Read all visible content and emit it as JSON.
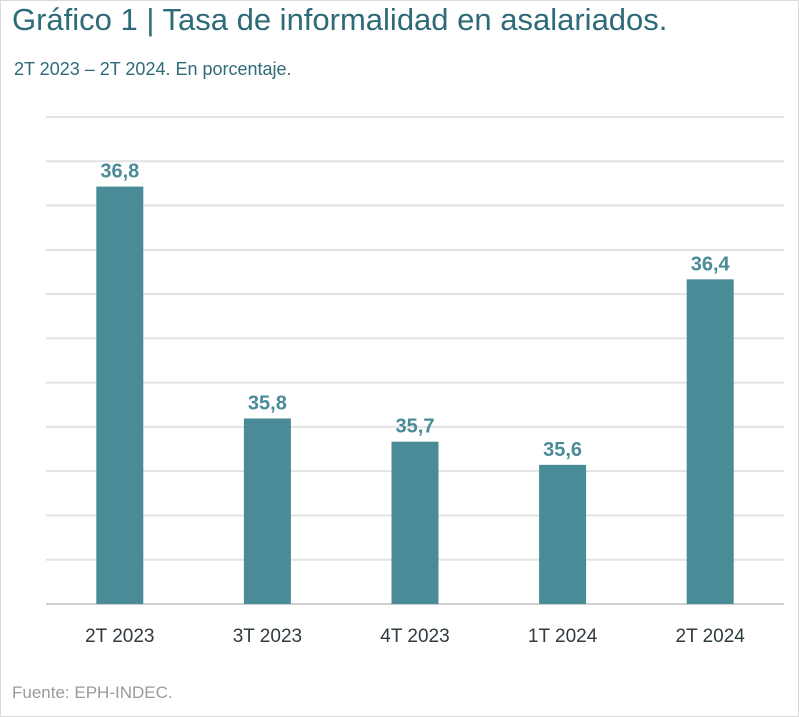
{
  "header": {
    "title": "Gráfico 1 | Tasa de informalidad en asalariados.",
    "subtitle": "2T 2023 – 2T 2024. En porcentaje."
  },
  "footer": {
    "source": "Fuente: EPH-INDEC."
  },
  "colors": {
    "bar": "#4a8b98",
    "value_label": "#4a8b98",
    "title": "#2e6b78"
  },
  "chart_data": {
    "type": "bar",
    "categories": [
      "2T 2023",
      "3T 2023",
      "4T 2023",
      "1T 2024",
      "2T 2024"
    ],
    "values": [
      36.8,
      35.8,
      35.7,
      35.6,
      36.4
    ],
    "value_labels": [
      "36,8",
      "35,8",
      "35,7",
      "35,6",
      "36,4"
    ],
    "title": "Gráfico 1 | Tasa de informalidad en asalariados.",
    "subtitle": "2T 2023 – 2T 2024. En porcentaje.",
    "xlabel": "",
    "ylabel": "",
    "ylim": [
      35,
      37.1
    ],
    "grid": true,
    "legend": "none"
  }
}
